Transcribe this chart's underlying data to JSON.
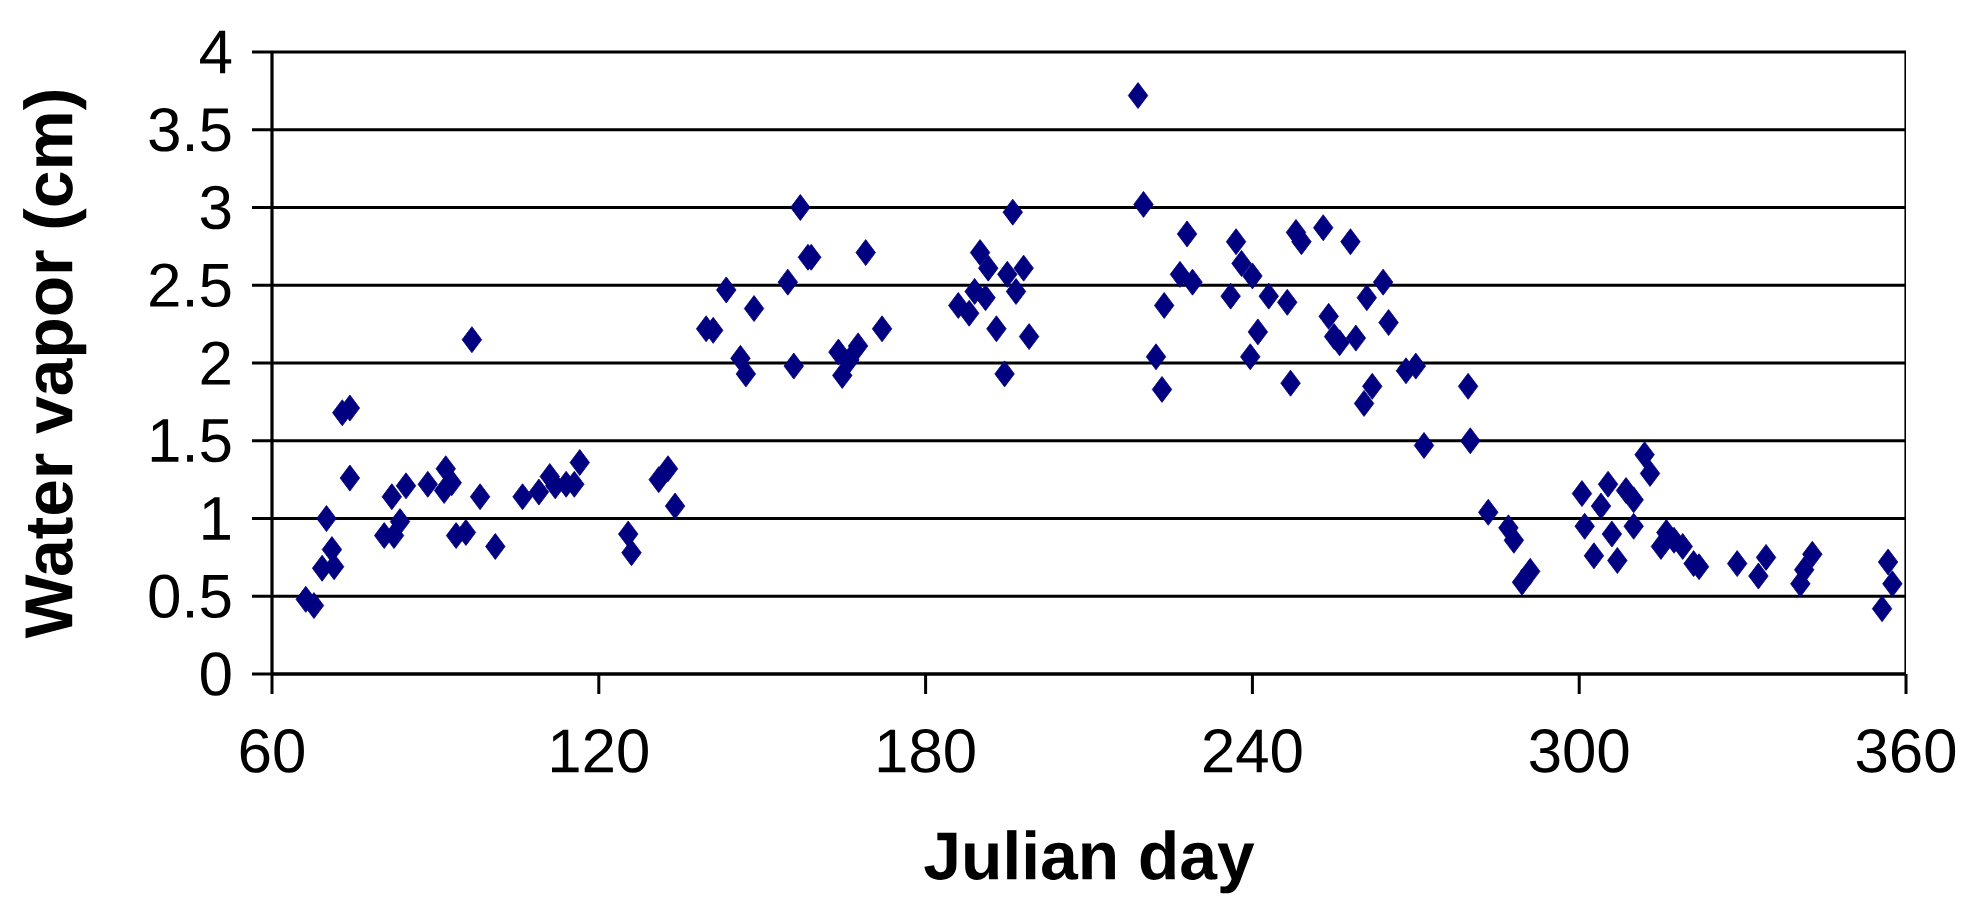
{
  "chart_data": {
    "type": "scatter",
    "xlabel": "Julian day",
    "ylabel": "Water vapor (cm)",
    "xlim": [
      60,
      360
    ],
    "xticks": [
      60,
      120,
      180,
      240,
      300,
      360
    ],
    "ylim": [
      0,
      4
    ],
    "yticks": [
      0,
      0.5,
      1,
      1.5,
      2,
      2.5,
      3,
      3.5,
      4
    ],
    "grid": "y",
    "marker": "diamond",
    "series": [
      {
        "color": "#000080",
        "x": [
          66.2,
          67.7,
          69.2,
          70,
          71,
          71.4,
          72.9,
          74.3,
          74.3,
          80.6,
          82,
          83.5,
          84.6,
          82.4,
          88.6,
          91.6,
          91.9,
          93,
          93.8,
          95.6,
          96.7,
          98.2,
          101,
          106,
          109,
          111,
          112,
          114,
          116.5,
          115.5,
          125.4,
          126,
          131,
          132.7,
          134,
          139.7,
          141,
          143.4,
          146,
          147,
          148.5,
          154.7,
          155.8,
          157,
          158.4,
          159,
          169,
          164,
          164.7,
          166,
          167.6,
          172,
          186,
          188,
          189,
          190,
          191.5,
          191,
          193,
          194.5,
          195,
          196,
          196.6,
          198,
          199,
          219,
          220,
          223.8,
          222.3,
          223.4,
          226.7,
          228,
          229,
          236,
          237,
          238,
          239.6,
          240,
          241,
          243,
          246.4,
          247,
          248,
          249,
          253,
          254,
          255,
          256,
          258,
          259,
          260.5,
          261,
          262,
          264,
          265,
          268.2,
          270,
          271.5,
          279.6,
          280,
          283.3,
          287,
          288,
          289.5,
          291,
          300.5,
          301,
          302.7,
          304,
          305.3,
          306,
          307,
          308.6,
          310,
          310,
          312,
          313,
          316,
          315,
          317.4,
          319,
          321,
          322,
          329,
          332.9,
          334.3,
          340.6,
          341.3,
          342.8,
          355.6,
          356.7,
          357.5
        ],
        "values": [
          0.48,
          0.44,
          0.68,
          1.0,
          0.8,
          0.69,
          1.68,
          1.71,
          1.26,
          0.89,
          1.14,
          0.98,
          1.21,
          0.89,
          1.22,
          1.18,
          1.32,
          1.23,
          0.89,
          0.91,
          2.15,
          1.14,
          0.82,
          1.14,
          1.17,
          1.27,
          1.21,
          1.22,
          1.36,
          1.22,
          0.9,
          0.78,
          1.25,
          1.32,
          1.08,
          2.22,
          2.21,
          2.47,
          2.03,
          1.93,
          2.35,
          2.52,
          1.98,
          3.0,
          2.68,
          2.68,
          2.71,
          2.07,
          1.92,
          2.02,
          2.11,
          2.22,
          2.37,
          2.32,
          2.46,
          2.71,
          2.61,
          2.42,
          2.22,
          1.93,
          2.57,
          2.97,
          2.46,
          2.61,
          2.17,
          3.72,
          3.02,
          2.37,
          2.04,
          1.83,
          2.57,
          2.83,
          2.52,
          2.43,
          2.78,
          2.64,
          2.04,
          2.56,
          2.2,
          2.43,
          2.39,
          1.87,
          2.84,
          2.78,
          2.87,
          2.3,
          2.17,
          2.13,
          2.78,
          2.16,
          1.74,
          2.42,
          1.85,
          2.52,
          2.26,
          1.95,
          1.98,
          1.47,
          1.85,
          1.5,
          1.04,
          0.94,
          0.86,
          0.59,
          0.66,
          1.16,
          0.95,
          0.76,
          1.08,
          1.22,
          0.9,
          0.73,
          1.18,
          1.12,
          0.95,
          1.41,
          1.29,
          0.91,
          0.82,
          0.86,
          0.82,
          0.71,
          0.69,
          0.71,
          0.63,
          0.75,
          0.58,
          0.67,
          0.77,
          0.42,
          0.72,
          0.58
        ]
      }
    ]
  }
}
